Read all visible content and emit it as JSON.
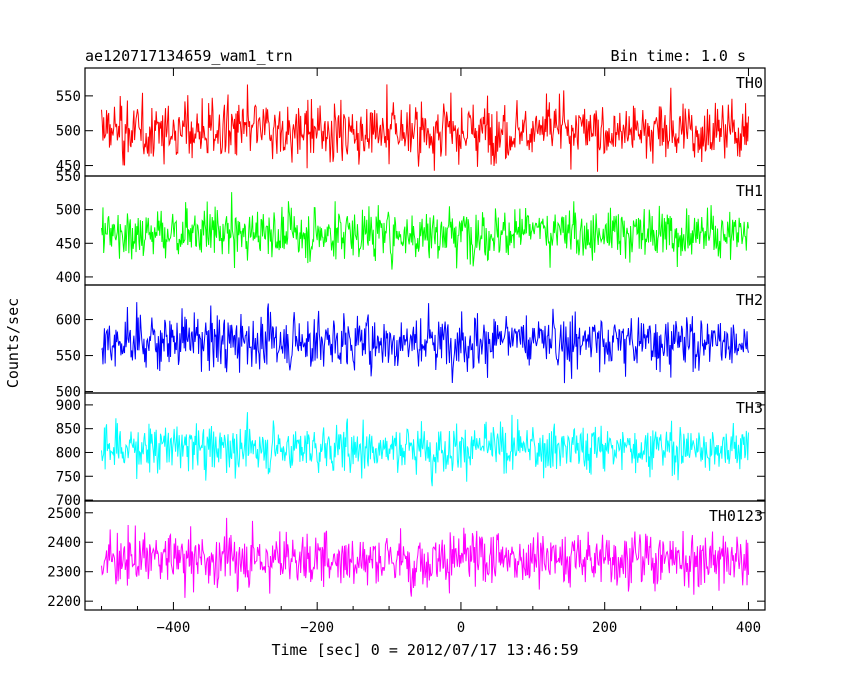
{
  "title": "ae120717134659_wam1_trn",
  "bin_time": "Bin time: 1.0 s",
  "ylabel": "Counts/sec",
  "xlabel": "Time [sec] 0 = 2012/07/17 13:46:59",
  "chart_data": {
    "type": "line",
    "x_range": [
      -500,
      400
    ],
    "xlim": [
      -523,
      423
    ],
    "x_ticks": [
      -400,
      -200,
      0,
      200,
      400
    ],
    "x_tick_labels": [
      "−400",
      "−200",
      "0",
      "200",
      "400"
    ],
    "panels": [
      {
        "name": "TH0",
        "color": "#ff0000",
        "ylim": [
          435,
          590
        ],
        "ticks": [
          450,
          500,
          550
        ],
        "mean": 500,
        "spread": 33
      },
      {
        "name": "TH1",
        "color": "#00ff00",
        "ylim": [
          388,
          550
        ],
        "ticks": [
          400,
          450,
          500,
          550
        ],
        "mean": 465,
        "spread": 30
      },
      {
        "name": "TH2",
        "color": "#0000ff",
        "ylim": [
          498,
          648
        ],
        "ticks": [
          500,
          550,
          600
        ],
        "mean": 570,
        "spread": 30
      },
      {
        "name": "TH3",
        "color": "#00ffff",
        "ylim": [
          698,
          925
        ],
        "ticks": [
          700,
          750,
          800,
          850,
          900
        ],
        "mean": 810,
        "spread": 38
      },
      {
        "name": "TH0123",
        "color": "#ff00ff",
        "ylim": [
          2170,
          2540
        ],
        "ticks": [
          2200,
          2300,
          2400,
          2500
        ],
        "mean": 2345,
        "spread": 70
      }
    ]
  }
}
